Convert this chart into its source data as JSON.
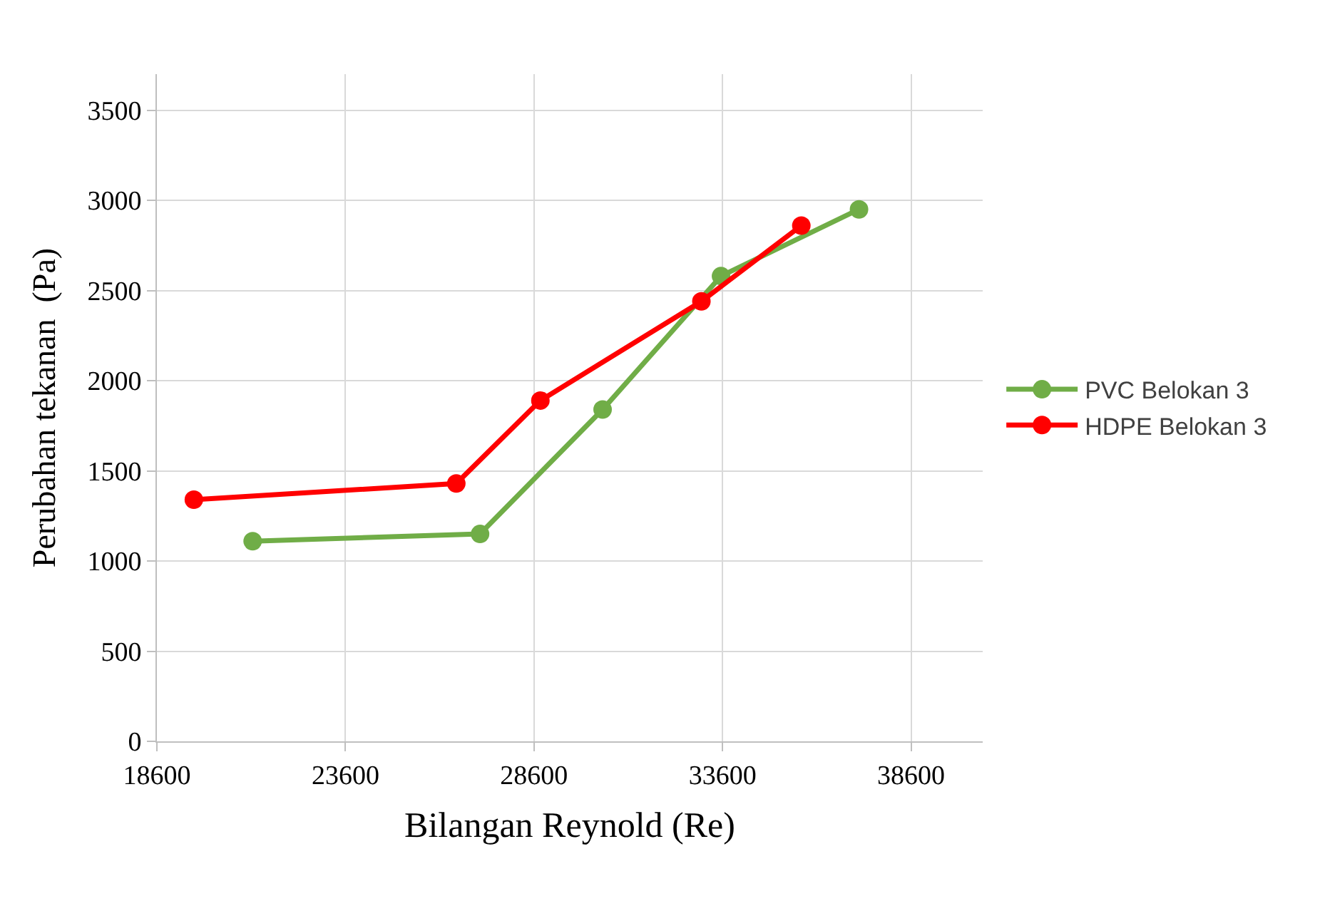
{
  "chart_data": {
    "type": "line",
    "xlabel": "Bilangan Reynold (Re)",
    "ylabel": "Perubahan tekanan  (Pa)",
    "xlim": [
      18600,
      40500
    ],
    "xticks": [
      18600,
      23600,
      28600,
      33600,
      38600
    ],
    "ylim": [
      0,
      3700
    ],
    "yticks": [
      0,
      500,
      1000,
      1500,
      2000,
      2500,
      3000,
      3500
    ],
    "grid": true,
    "legend": "right",
    "marker": "circle",
    "line_style": "solid",
    "series": [
      {
        "name": "PVC Belokan 3",
        "color": "#70ad47",
        "x": [
          21140,
          27170,
          30420,
          33560,
          37220
        ],
        "values": [
          1110,
          1150,
          1840,
          2580,
          2950
        ]
      },
      {
        "name": "HDPE Belokan 3",
        "color": "#ff0000",
        "x": [
          19580,
          26540,
          28770,
          33040,
          35690
        ],
        "values": [
          1340,
          1430,
          1890,
          2440,
          2860
        ]
      }
    ]
  }
}
